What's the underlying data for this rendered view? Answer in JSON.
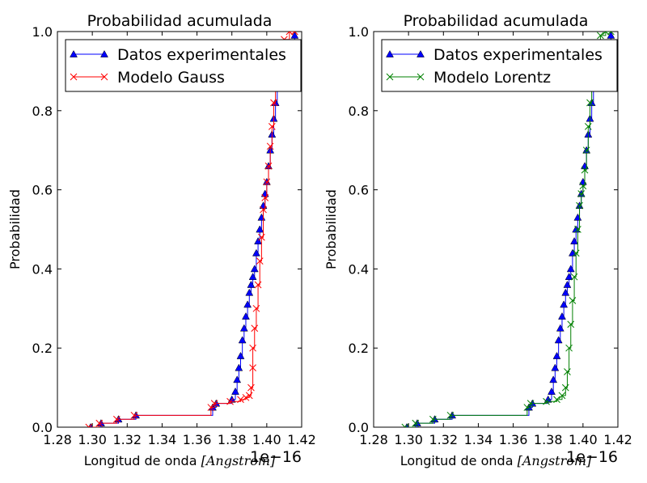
{
  "chart_data": [
    {
      "type": "line",
      "title": "Probabilidad acumulada",
      "xlabel": "Longitud de onda",
      "xlabel_unit": "[Angstrom]",
      "ylabel": "Probabilidad",
      "offset_text": "1e−16",
      "xlim": [
        1.28,
        1.42
      ],
      "ylim": [
        0.0,
        1.0
      ],
      "x_scale_note": "x values in units of 1e-16",
      "xticks": [
        "1.28",
        "1.30",
        "1.32",
        "1.34",
        "1.36",
        "1.38",
        "1.40",
        "1.42"
      ],
      "yticks": [
        "0.0",
        "0.2",
        "0.4",
        "0.6",
        "0.8",
        "1.0"
      ],
      "legend_position": "top",
      "grid": false,
      "series": [
        {
          "name": "Datos experimentales",
          "color": "#0000ff",
          "marker": "triangle",
          "x": [
            1.299,
            1.305,
            1.315,
            1.325,
            1.369,
            1.371,
            1.38,
            1.382,
            1.383,
            1.384,
            1.385,
            1.386,
            1.387,
            1.388,
            1.389,
            1.39,
            1.391,
            1.392,
            1.393,
            1.394,
            1.395,
            1.396,
            1.397,
            1.398,
            1.399,
            1.4,
            1.401,
            1.402,
            1.403,
            1.404,
            1.405,
            1.406,
            1.407,
            1.416
          ],
          "y": [
            0.0,
            0.01,
            0.02,
            0.03,
            0.05,
            0.06,
            0.07,
            0.09,
            0.12,
            0.15,
            0.18,
            0.22,
            0.25,
            0.28,
            0.31,
            0.34,
            0.36,
            0.38,
            0.4,
            0.44,
            0.47,
            0.5,
            0.53,
            0.56,
            0.59,
            0.62,
            0.66,
            0.7,
            0.74,
            0.78,
            0.82,
            0.86,
            0.9,
            0.99
          ]
        },
        {
          "name": "Modelo Gauss",
          "color": "#ff0000",
          "marker": "x",
          "x": [
            1.298,
            1.304,
            1.314,
            1.324,
            1.368,
            1.37,
            1.379,
            1.385,
            1.388,
            1.39,
            1.391,
            1.392,
            1.392,
            1.393,
            1.394,
            1.395,
            1.396,
            1.397,
            1.398,
            1.399,
            1.4,
            1.401,
            1.402,
            1.403,
            1.404,
            1.405,
            1.406,
            1.408,
            1.41,
            1.413,
            1.416
          ],
          "y": [
            0.0,
            0.01,
            0.02,
            0.03,
            0.05,
            0.06,
            0.065,
            0.07,
            0.075,
            0.08,
            0.1,
            0.15,
            0.2,
            0.25,
            0.3,
            0.36,
            0.42,
            0.48,
            0.55,
            0.58,
            0.62,
            0.66,
            0.71,
            0.76,
            0.82,
            0.86,
            0.9,
            0.94,
            0.98,
            1.0,
            1.0
          ]
        }
      ]
    },
    {
      "type": "line",
      "title": "Probabilidad acumulada",
      "xlabel": "Longitud de onda",
      "xlabel_unit": "[Angstrom]",
      "ylabel": "Probabilidad",
      "offset_text": "1e−16",
      "xlim": [
        1.28,
        1.42
      ],
      "ylim": [
        0.0,
        1.0
      ],
      "x_scale_note": "x values in units of 1e-16",
      "xticks": [
        "1.28",
        "1.30",
        "1.32",
        "1.34",
        "1.36",
        "1.38",
        "1.40",
        "1.42"
      ],
      "yticks": [
        "0.0",
        "0.2",
        "0.4",
        "0.6",
        "0.8",
        "1.0"
      ],
      "legend_position": "top",
      "grid": false,
      "series": [
        {
          "name": "Datos experimentales",
          "color": "#0000ff",
          "marker": "triangle",
          "x": [
            1.299,
            1.305,
            1.315,
            1.325,
            1.369,
            1.371,
            1.38,
            1.382,
            1.383,
            1.384,
            1.385,
            1.386,
            1.387,
            1.388,
            1.389,
            1.39,
            1.391,
            1.392,
            1.393,
            1.394,
            1.395,
            1.396,
            1.397,
            1.398,
            1.399,
            1.4,
            1.401,
            1.402,
            1.403,
            1.404,
            1.405,
            1.406,
            1.407,
            1.416
          ],
          "y": [
            0.0,
            0.01,
            0.02,
            0.03,
            0.05,
            0.06,
            0.07,
            0.09,
            0.12,
            0.15,
            0.18,
            0.22,
            0.25,
            0.28,
            0.31,
            0.34,
            0.36,
            0.38,
            0.4,
            0.44,
            0.47,
            0.5,
            0.53,
            0.56,
            0.59,
            0.62,
            0.66,
            0.7,
            0.74,
            0.78,
            0.82,
            0.86,
            0.9,
            0.99
          ]
        },
        {
          "name": "Modelo Lorentz",
          "color": "#008000",
          "marker": "x",
          "x": [
            1.298,
            1.304,
            1.314,
            1.324,
            1.368,
            1.37,
            1.379,
            1.385,
            1.388,
            1.39,
            1.391,
            1.392,
            1.393,
            1.394,
            1.395,
            1.396,
            1.397,
            1.398,
            1.399,
            1.4,
            1.401,
            1.402,
            1.403,
            1.404,
            1.405,
            1.406,
            1.408,
            1.41,
            1.413,
            1.416
          ],
          "y": [
            0.0,
            0.01,
            0.02,
            0.03,
            0.05,
            0.06,
            0.065,
            0.07,
            0.08,
            0.1,
            0.14,
            0.2,
            0.26,
            0.32,
            0.38,
            0.44,
            0.5,
            0.56,
            0.59,
            0.61,
            0.65,
            0.7,
            0.76,
            0.82,
            0.86,
            0.9,
            0.95,
            0.99,
            1.0,
            1.0
          ]
        }
      ]
    }
  ]
}
